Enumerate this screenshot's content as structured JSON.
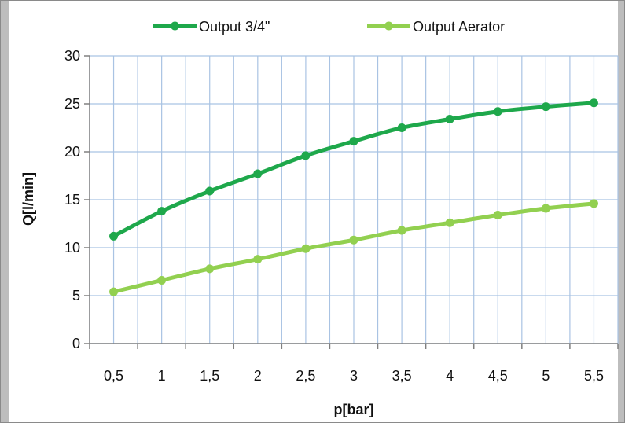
{
  "chart_data": {
    "type": "line",
    "title": "",
    "xlabel": "p[bar]",
    "ylabel": "Q[l/min]",
    "categories": [
      "0,5",
      "1",
      "1,5",
      "2",
      "2,5",
      "3",
      "3,5",
      "4",
      "4,5",
      "5",
      "5,5"
    ],
    "ylim": [
      0,
      30
    ],
    "yticks": [
      "0",
      "5",
      "10",
      "15",
      "20",
      "25",
      "30"
    ],
    "grid": true,
    "legend_position": "top",
    "series": [
      {
        "name": "Output 3/4\"",
        "color": "#1ea84b",
        "values": [
          11.2,
          13.8,
          15.9,
          17.7,
          19.6,
          21.1,
          22.5,
          23.4,
          24.2,
          24.7,
          25.1
        ]
      },
      {
        "name": "Output Aerator",
        "color": "#92d050",
        "values": [
          5.4,
          6.6,
          7.8,
          8.8,
          9.9,
          10.8,
          11.8,
          12.6,
          13.4,
          14.1,
          14.6
        ]
      }
    ]
  },
  "colors": {
    "grid": "#a9c3e3",
    "axis": "#808080",
    "frame": "#8a8a8a"
  }
}
